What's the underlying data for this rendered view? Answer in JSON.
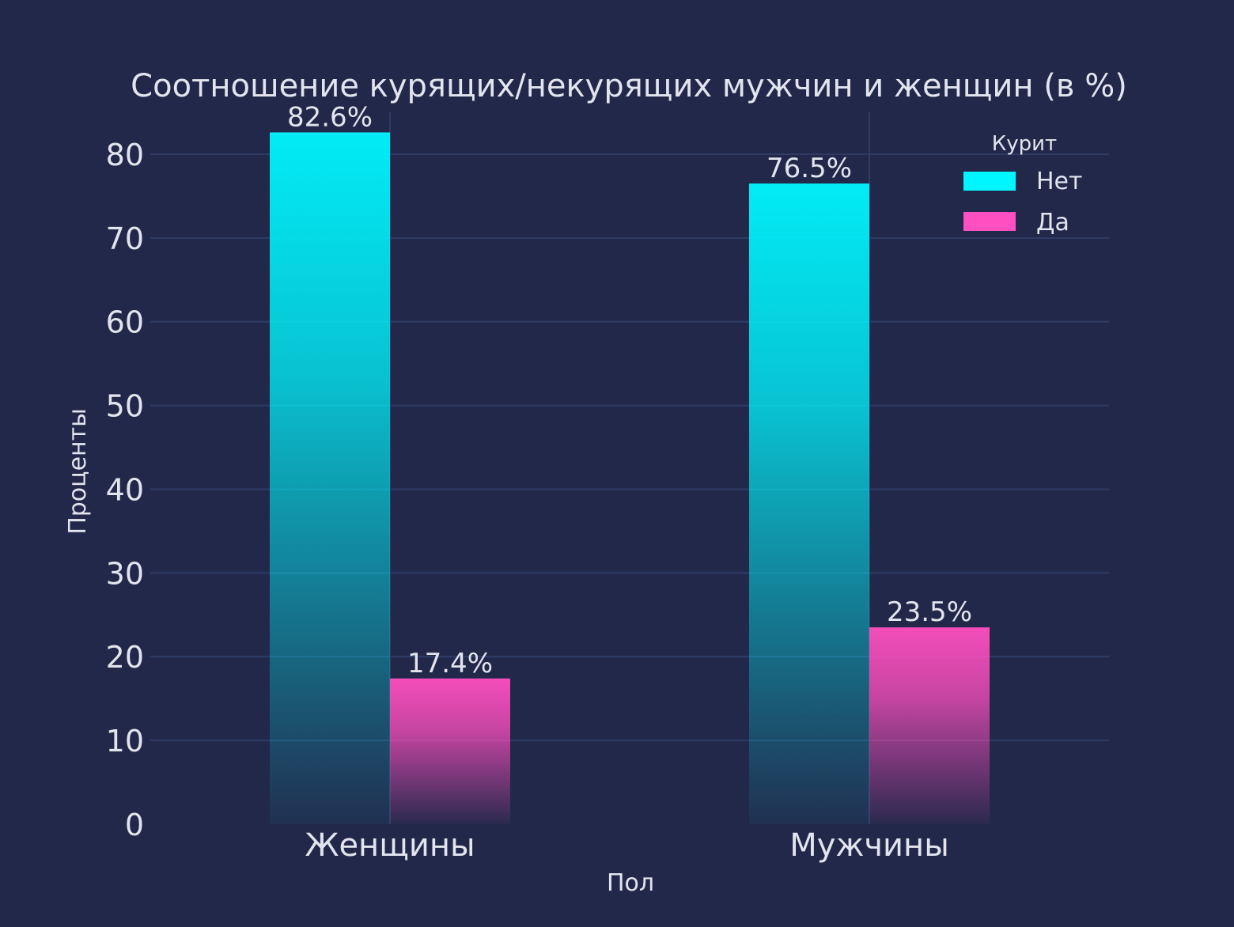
{
  "chart_data": {
    "type": "bar",
    "title": "Соотношение курящих/некурящих мужчин и женщин (в %)",
    "xlabel": "Пол",
    "ylabel": "Проценты",
    "categories": [
      "Женщины",
      "Мужчины"
    ],
    "series": [
      {
        "name": "Нет",
        "values": [
          82.6,
          76.5
        ],
        "labels": [
          "82.6%",
          "76.5%"
        ],
        "color": "#00f6ff"
      },
      {
        "name": "Да",
        "values": [
          17.4,
          23.5
        ],
        "labels": [
          "17.4%",
          "23.5%"
        ],
        "color": "#ff4fc0"
      }
    ],
    "ylim": [
      0,
      85
    ],
    "yticks": [
      0,
      10,
      20,
      30,
      40,
      50,
      60,
      70,
      80
    ],
    "legend": {
      "title": "Курит",
      "placement": "top-right"
    },
    "grid": true
  },
  "colors": {
    "background": "#22284a",
    "grid": "#2e3c66",
    "text": "#e2e4ee"
  }
}
